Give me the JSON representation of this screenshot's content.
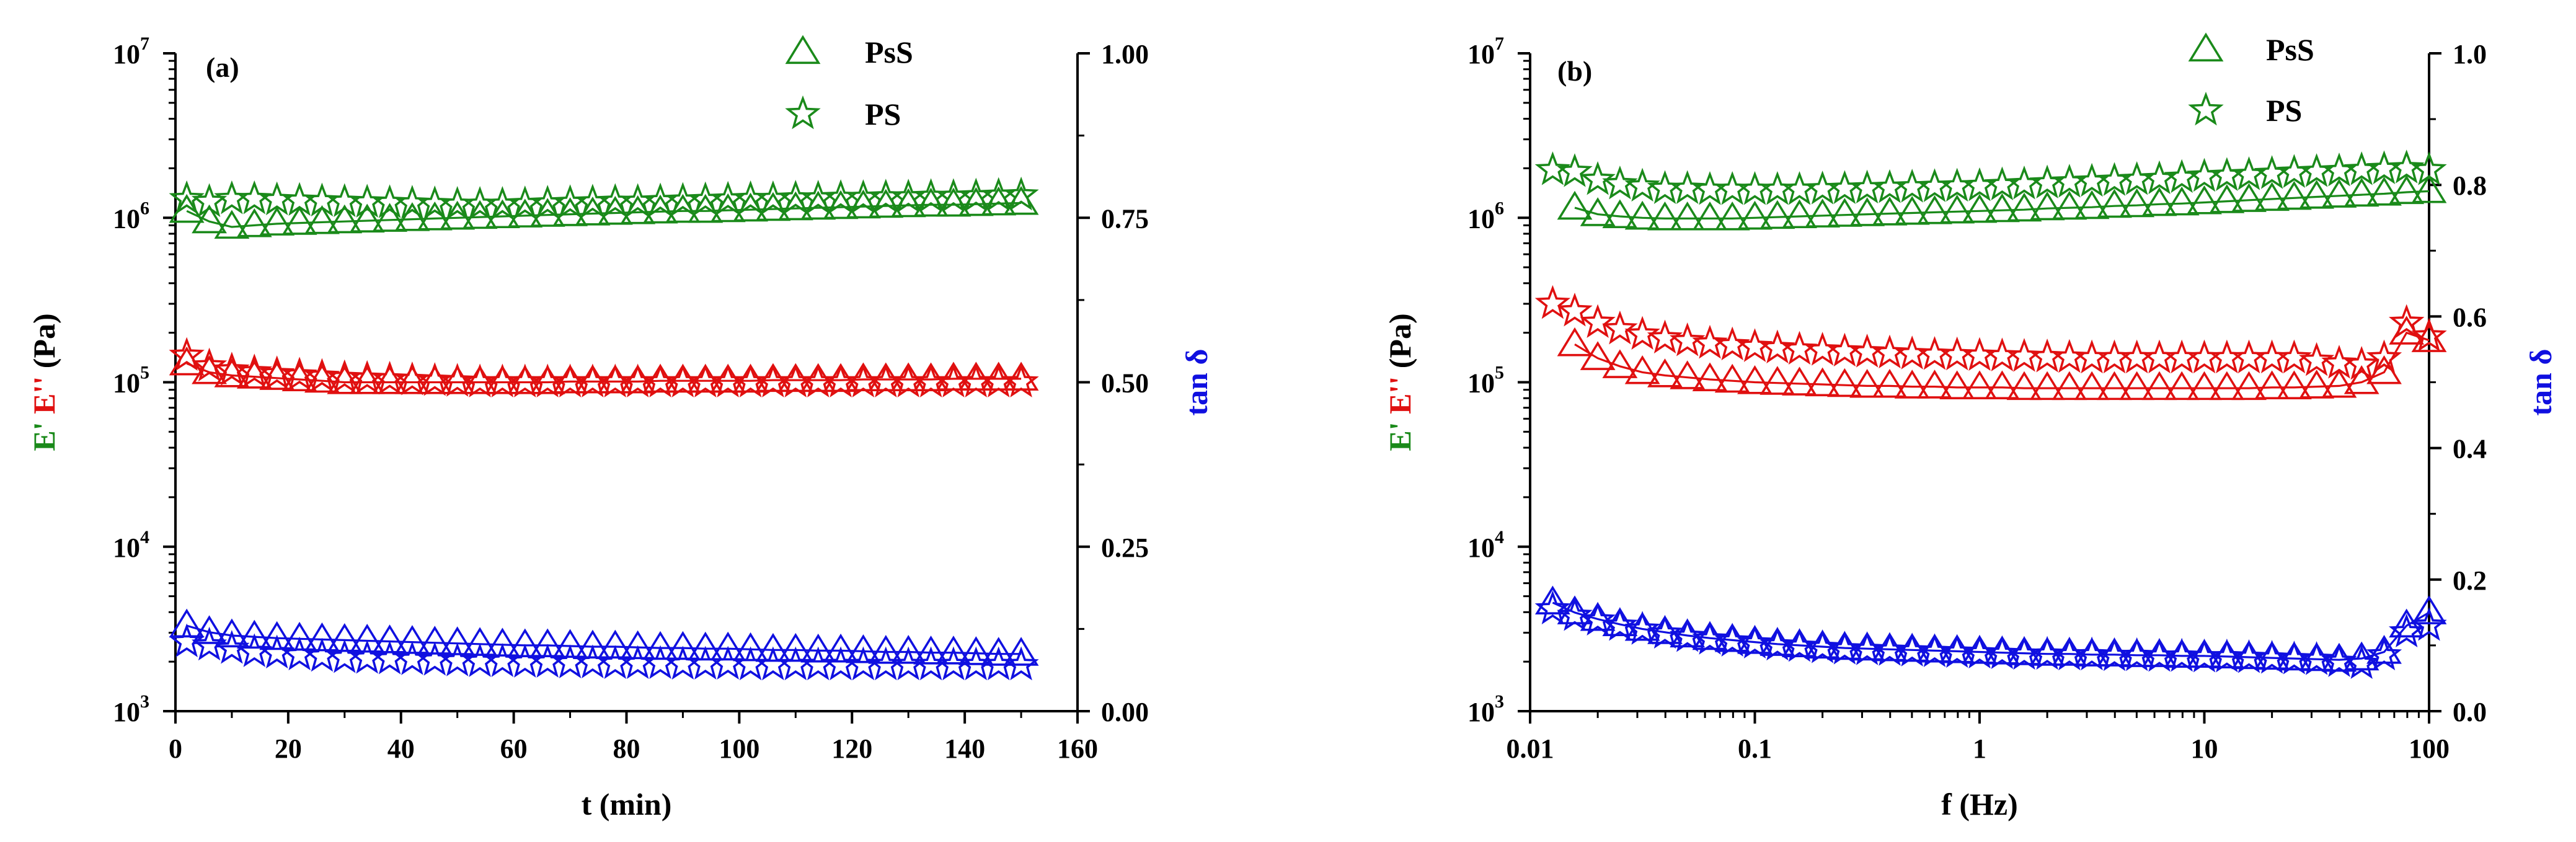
{
  "chart_data": [
    {
      "type": "scatter",
      "panel_label": "(a)",
      "xlabel": "t (min)",
      "xscale": "linear",
      "xlim": [
        0,
        160
      ],
      "xticks": [
        0,
        20,
        40,
        60,
        80,
        100,
        120,
        140,
        160
      ],
      "xtick_labels": [
        "0",
        "20",
        "40",
        "60",
        "80",
        "100",
        "120",
        "140",
        "160"
      ],
      "ylabel_parts": [
        {
          "text": "E'",
          "color": "#1a8a1a"
        },
        {
          "text": "E''",
          "color": "#e01010"
        },
        {
          "text": "(Pa)",
          "color": "#000000"
        }
      ],
      "yscale": "log",
      "ylim": [
        1000,
        10000000
      ],
      "yticks": [
        {
          "value": 1000,
          "base": "10",
          "exp": "3"
        },
        {
          "value": 10000,
          "base": "10",
          "exp": "4"
        },
        {
          "value": 100000,
          "base": "10",
          "exp": "5"
        },
        {
          "value": 1000000,
          "base": "10",
          "exp": "6"
        },
        {
          "value": 10000000,
          "base": "10",
          "exp": "7"
        }
      ],
      "y2label": "tan δ",
      "y2lim": [
        0,
        1
      ],
      "y2ticks": [
        0,
        0.25,
        0.5,
        0.75,
        1.0
      ],
      "y2tick_labels": [
        "0.00",
        "0.25",
        "0.50",
        "0.75",
        "1.00"
      ],
      "legend": {
        "position": "top-right",
        "entries": [
          {
            "marker": "triangle",
            "label": "PsS"
          },
          {
            "marker": "star",
            "label": "PS"
          }
        ]
      },
      "x": [
        2,
        6,
        10,
        14,
        18,
        22,
        26,
        30,
        34,
        38,
        42,
        46,
        50,
        54,
        58,
        62,
        66,
        70,
        74,
        78,
        82,
        86,
        90,
        94,
        98,
        102,
        106,
        110,
        114,
        118,
        122,
        126,
        130,
        134,
        138,
        142,
        146,
        150
      ],
      "series": [
        {
          "name": "PsS E'",
          "quantity": "E'",
          "sample": "PsS",
          "marker": "triangle",
          "color": "#1a8a1a",
          "axis": "left",
          "line": true,
          "values": [
            1100000,
            950000,
            880000,
            900000,
            920000,
            930000,
            940000,
            950000,
            960000,
            970000,
            980000,
            990000,
            1000000,
            1010000,
            1020000,
            1030000,
            1040000,
            1050000,
            1060000,
            1070000,
            1080000,
            1090000,
            1100000,
            1100000,
            1110000,
            1120000,
            1130000,
            1140000,
            1150000,
            1160000,
            1170000,
            1180000,
            1190000,
            1200000,
            1200000,
            1210000,
            1220000,
            1230000
          ]
        },
        {
          "name": "PS E'",
          "quantity": "E'",
          "sample": "PS",
          "marker": "star",
          "color": "#1a8a1a",
          "axis": "left",
          "line": false,
          "values": [
            1300000,
            1250000,
            1300000,
            1300000,
            1280000,
            1270000,
            1260000,
            1250000,
            1240000,
            1230000,
            1220000,
            1210000,
            1200000,
            1200000,
            1200000,
            1210000,
            1220000,
            1230000,
            1240000,
            1250000,
            1250000,
            1260000,
            1270000,
            1280000,
            1290000,
            1300000,
            1300000,
            1310000,
            1310000,
            1320000,
            1320000,
            1330000,
            1330000,
            1340000,
            1340000,
            1350000,
            1360000,
            1370000
          ]
        },
        {
          "name": "PsS E''",
          "quantity": "E''",
          "sample": "PsS",
          "marker": "triangle",
          "color": "#e01010",
          "axis": "left",
          "line": true,
          "values": [
            130000,
            115000,
            110000,
            108000,
            106000,
            104000,
            102000,
            100000,
            100000,
            100000,
            100000,
            100000,
            100000,
            100000,
            100000,
            100000,
            100000,
            101000,
            101000,
            101000,
            101000,
            102000,
            102000,
            102000,
            102000,
            102000,
            103000,
            103000,
            103000,
            103000,
            104000,
            104000,
            104000,
            104000,
            105000,
            105000,
            105000,
            105000
          ]
        },
        {
          "name": "PS E''",
          "quantity": "E''",
          "sample": "PS",
          "marker": "star",
          "color": "#e01010",
          "axis": "left",
          "line": false,
          "values": [
            145000,
            125000,
            118000,
            115000,
            112000,
            110000,
            108000,
            106000,
            105000,
            104000,
            103000,
            102000,
            101000,
            100000,
            100000,
            100000,
            100000,
            100000,
            100000,
            100000,
            100000,
            100000,
            100000,
            100000,
            100000,
            100000,
            100000,
            100000,
            100000,
            100000,
            100000,
            100000,
            100000,
            100000,
            100000,
            100000,
            100000,
            100000
          ]
        },
        {
          "name": "PsS tan δ",
          "quantity": "tan δ",
          "sample": "PsS",
          "marker": "triangle",
          "color": "#1010e0",
          "axis": "right",
          "line": true,
          "values": [
            0.13,
            0.12,
            0.115,
            0.113,
            0.111,
            0.11,
            0.109,
            0.108,
            0.107,
            0.106,
            0.105,
            0.104,
            0.103,
            0.102,
            0.101,
            0.1,
            0.1,
            0.099,
            0.098,
            0.098,
            0.097,
            0.096,
            0.096,
            0.095,
            0.095,
            0.094,
            0.093,
            0.093,
            0.092,
            0.092,
            0.091,
            0.09,
            0.09,
            0.089,
            0.089,
            0.088,
            0.087,
            0.087
          ]
        },
        {
          "name": "PS tan δ",
          "quantity": "tan δ",
          "sample": "PS",
          "marker": "star",
          "color": "#1010e0",
          "axis": "right",
          "line": false,
          "values": [
            0.105,
            0.1,
            0.095,
            0.09,
            0.088,
            0.085,
            0.083,
            0.081,
            0.08,
            0.079,
            0.078,
            0.077,
            0.076,
            0.075,
            0.075,
            0.074,
            0.074,
            0.073,
            0.073,
            0.072,
            0.072,
            0.072,
            0.071,
            0.071,
            0.071,
            0.07,
            0.07,
            0.07,
            0.07,
            0.07,
            0.07,
            0.07,
            0.07,
            0.07,
            0.07,
            0.07,
            0.07,
            0.07
          ]
        }
      ]
    },
    {
      "type": "scatter",
      "panel_label": "(b)",
      "xlabel": "f (Hz)",
      "xscale": "log",
      "xlim": [
        0.01,
        100
      ],
      "xticks": [
        0.01,
        0.1,
        1,
        10,
        100
      ],
      "xtick_labels": [
        "0.01",
        "0.1",
        "1",
        "10",
        "100"
      ],
      "ylabel_parts": [
        {
          "text": "E'",
          "color": "#1a8a1a"
        },
        {
          "text": "E''",
          "color": "#e01010"
        },
        {
          "text": "(Pa)",
          "color": "#000000"
        }
      ],
      "yscale": "log",
      "ylim": [
        1000,
        10000000
      ],
      "yticks": [
        {
          "value": 1000,
          "base": "10",
          "exp": "3"
        },
        {
          "value": 10000,
          "base": "10",
          "exp": "4"
        },
        {
          "value": 100000,
          "base": "10",
          "exp": "5"
        },
        {
          "value": 1000000,
          "base": "10",
          "exp": "6"
        },
        {
          "value": 10000000,
          "base": "10",
          "exp": "7"
        }
      ],
      "y2label": "tan δ",
      "y2lim": [
        0,
        1
      ],
      "y2ticks": [
        0,
        0.2,
        0.4,
        0.6,
        0.8,
        1.0
      ],
      "y2tick_labels": [
        "0.0",
        "0.2",
        "0.4",
        "0.6",
        "0.8",
        "1.0"
      ],
      "legend": {
        "position": "top-right",
        "entries": [
          {
            "marker": "triangle",
            "label": "PsS"
          },
          {
            "marker": "star",
            "label": "PS"
          }
        ]
      },
      "x": [
        0.0126,
        0.0158,
        0.02,
        0.0251,
        0.0316,
        0.0398,
        0.0501,
        0.0631,
        0.0794,
        0.1,
        0.126,
        0.158,
        0.2,
        0.251,
        0.316,
        0.398,
        0.501,
        0.631,
        0.794,
        1,
        1.26,
        1.58,
        2,
        2.51,
        3.16,
        3.98,
        5.01,
        6.31,
        7.94,
        10,
        12.6,
        15.8,
        20,
        25.1,
        31.6,
        39.8,
        50.1,
        63.1,
        79.4,
        100
      ],
      "series": [
        {
          "name": "PsS E'",
          "quantity": "E'",
          "sample": "PsS",
          "marker": "triangle",
          "color": "#1a8a1a",
          "axis": "left",
          "line": true,
          "values": [
            null,
            1150000,
            1050000,
            1020000,
            1000000,
            990000,
            990000,
            990000,
            990000,
            1000000,
            1010000,
            1020000,
            1030000,
            1040000,
            1050000,
            1060000,
            1070000,
            1080000,
            1090000,
            1100000,
            1110000,
            1120000,
            1140000,
            1150000,
            1160000,
            1180000,
            1190000,
            1210000,
            1220000,
            1240000,
            1260000,
            1280000,
            1300000,
            1320000,
            1340000,
            1360000,
            1380000,
            1400000,
            1430000,
            1450000
          ]
        },
        {
          "name": "PS E'",
          "quantity": "E'",
          "sample": "PS",
          "marker": "star",
          "color": "#1a8a1a",
          "axis": "left",
          "line": false,
          "values": [
            1950000,
            1900000,
            1700000,
            1600000,
            1550000,
            1500000,
            1500000,
            1480000,
            1480000,
            1480000,
            1480000,
            1480000,
            1490000,
            1500000,
            1510000,
            1520000,
            1530000,
            1540000,
            1550000,
            1560000,
            1580000,
            1600000,
            1620000,
            1640000,
            1660000,
            1680000,
            1700000,
            1720000,
            1750000,
            1780000,
            1800000,
            1820000,
            1850000,
            1880000,
            1900000,
            1920000,
            1950000,
            1980000,
            2000000,
            1950000
          ]
        },
        {
          "name": "PsS E''",
          "quantity": "E''",
          "sample": "PsS",
          "marker": "triangle",
          "color": "#e01010",
          "axis": "left",
          "line": true,
          "values": [
            null,
            170000,
            140000,
            125000,
            115000,
            110000,
            107000,
            104000,
            102000,
            100000,
            99000,
            98000,
            97000,
            96000,
            95000,
            95000,
            94000,
            94000,
            93000,
            93000,
            93000,
            92000,
            92000,
            92000,
            92000,
            92000,
            92000,
            92000,
            92000,
            92000,
            92000,
            92000,
            93000,
            93000,
            94000,
            95000,
            100000,
            115000,
            200000,
            180000
          ]
        },
        {
          "name": "PS E''",
          "quantity": "E''",
          "sample": "PS",
          "marker": "star",
          "color": "#e01010",
          "axis": "left",
          "line": false,
          "values": [
            300000,
            270000,
            230000,
            210000,
            195000,
            185000,
            178000,
            172000,
            168000,
            164000,
            161000,
            158000,
            156000,
            154000,
            152000,
            150000,
            148000,
            147000,
            146000,
            145000,
            144000,
            143000,
            142000,
            141000,
            140000,
            140000,
            140000,
            140000,
            140000,
            140000,
            140000,
            140000,
            140000,
            140000,
            135000,
            130000,
            128000,
            140000,
            230000,
            190000
          ]
        },
        {
          "name": "PsS tan δ",
          "quantity": "tan δ",
          "sample": "PsS",
          "marker": "triangle",
          "color": "#1010e0",
          "axis": "right",
          "line": true,
          "values": [
            0.165,
            0.15,
            0.14,
            0.132,
            0.125,
            0.12,
            0.115,
            0.111,
            0.108,
            0.105,
            0.102,
            0.1,
            0.098,
            0.096,
            0.095,
            0.094,
            0.093,
            0.092,
            0.091,
            0.09,
            0.089,
            0.088,
            0.087,
            0.087,
            0.086,
            0.086,
            0.085,
            0.085,
            0.084,
            0.084,
            0.083,
            0.082,
            0.081,
            0.08,
            0.079,
            0.078,
            0.08,
            0.09,
            0.13,
            0.15
          ]
        },
        {
          "name": "PS tan δ",
          "quantity": "tan δ",
          "sample": "PS",
          "marker": "star",
          "color": "#1010e0",
          "axis": "right",
          "line": false,
          "values": [
            0.155,
            0.145,
            0.138,
            0.13,
            0.124,
            0.118,
            0.113,
            0.109,
            0.106,
            0.103,
            0.1,
            0.098,
            0.096,
            0.094,
            0.093,
            0.092,
            0.091,
            0.09,
            0.089,
            0.088,
            0.087,
            0.086,
            0.086,
            0.085,
            0.085,
            0.084,
            0.084,
            0.083,
            0.083,
            0.082,
            0.082,
            0.081,
            0.08,
            0.079,
            0.078,
            0.075,
            0.072,
            0.085,
            0.12,
            0.13
          ]
        }
      ]
    }
  ]
}
